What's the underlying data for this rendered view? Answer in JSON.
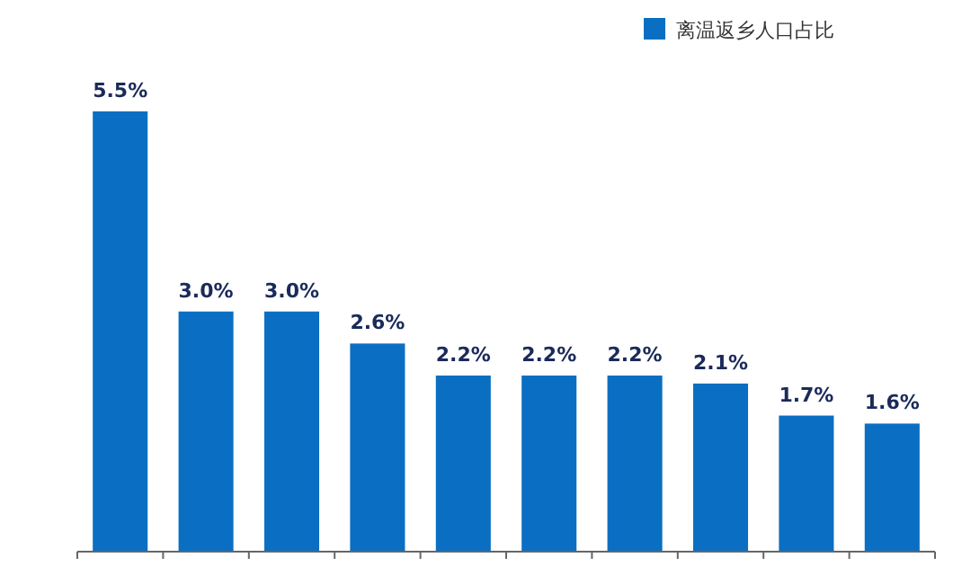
{
  "chart_data": {
    "type": "bar",
    "categories": [
      null,
      null,
      null,
      null,
      null,
      null,
      null,
      null,
      null,
      null
    ],
    "series": [
      {
        "name": "离温返乡人口占比",
        "color": "#0a6fc2",
        "values": [
          5.5,
          3.0,
          3.0,
          2.6,
          2.2,
          2.2,
          2.2,
          2.1,
          1.7,
          1.6
        ],
        "value_labels": [
          "5.5%",
          "3.0%",
          "3.0%",
          "2.6%",
          "2.2%",
          "2.2%",
          "2.2%",
          "2.1%",
          "1.7%",
          "1.6%"
        ]
      }
    ],
    "legend": "top right",
    "grid": false
  }
}
